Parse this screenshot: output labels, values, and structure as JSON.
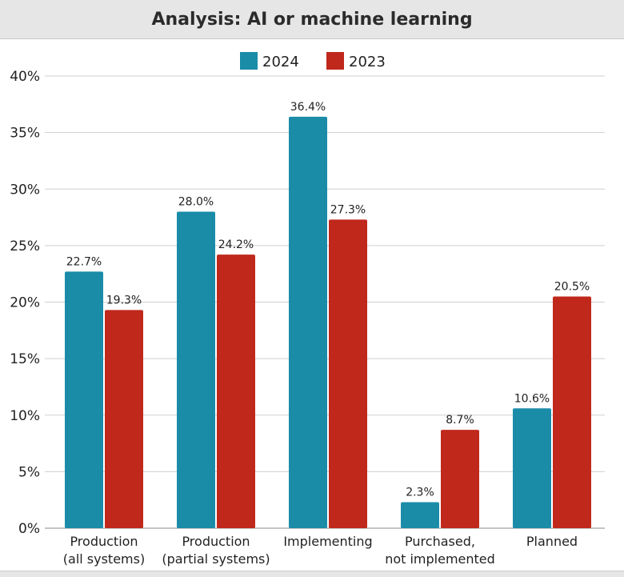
{
  "chart_data": {
    "type": "bar",
    "title": "Analysis: AI or machine learning",
    "categories": [
      [
        "Production",
        "(all systems)"
      ],
      [
        "Production",
        "(partial systems)"
      ],
      [
        "Implementing"
      ],
      [
        "Purchased,",
        "not implemented"
      ],
      [
        "Planned"
      ]
    ],
    "series": [
      {
        "name": "2024",
        "color": "#1a8ca8",
        "values": [
          22.7,
          28.0,
          36.4,
          2.3,
          10.6
        ]
      },
      {
        "name": "2023",
        "color": "#c0281c",
        "values": [
          19.3,
          24.2,
          27.3,
          8.7,
          20.5
        ]
      }
    ],
    "ylim": [
      0,
      40
    ],
    "yticks": [
      "0%",
      "5%",
      "10%",
      "15%",
      "20%",
      "25%",
      "30%",
      "35%",
      "40%"
    ],
    "value_labels": [
      [
        "22.7%",
        "28.0%",
        "36.4%",
        "2.3%",
        "10.6%"
      ],
      [
        "19.3%",
        "24.2%",
        "27.3%",
        "8.7%",
        "20.5%"
      ]
    ],
    "legend": "top-center",
    "grid": true
  }
}
